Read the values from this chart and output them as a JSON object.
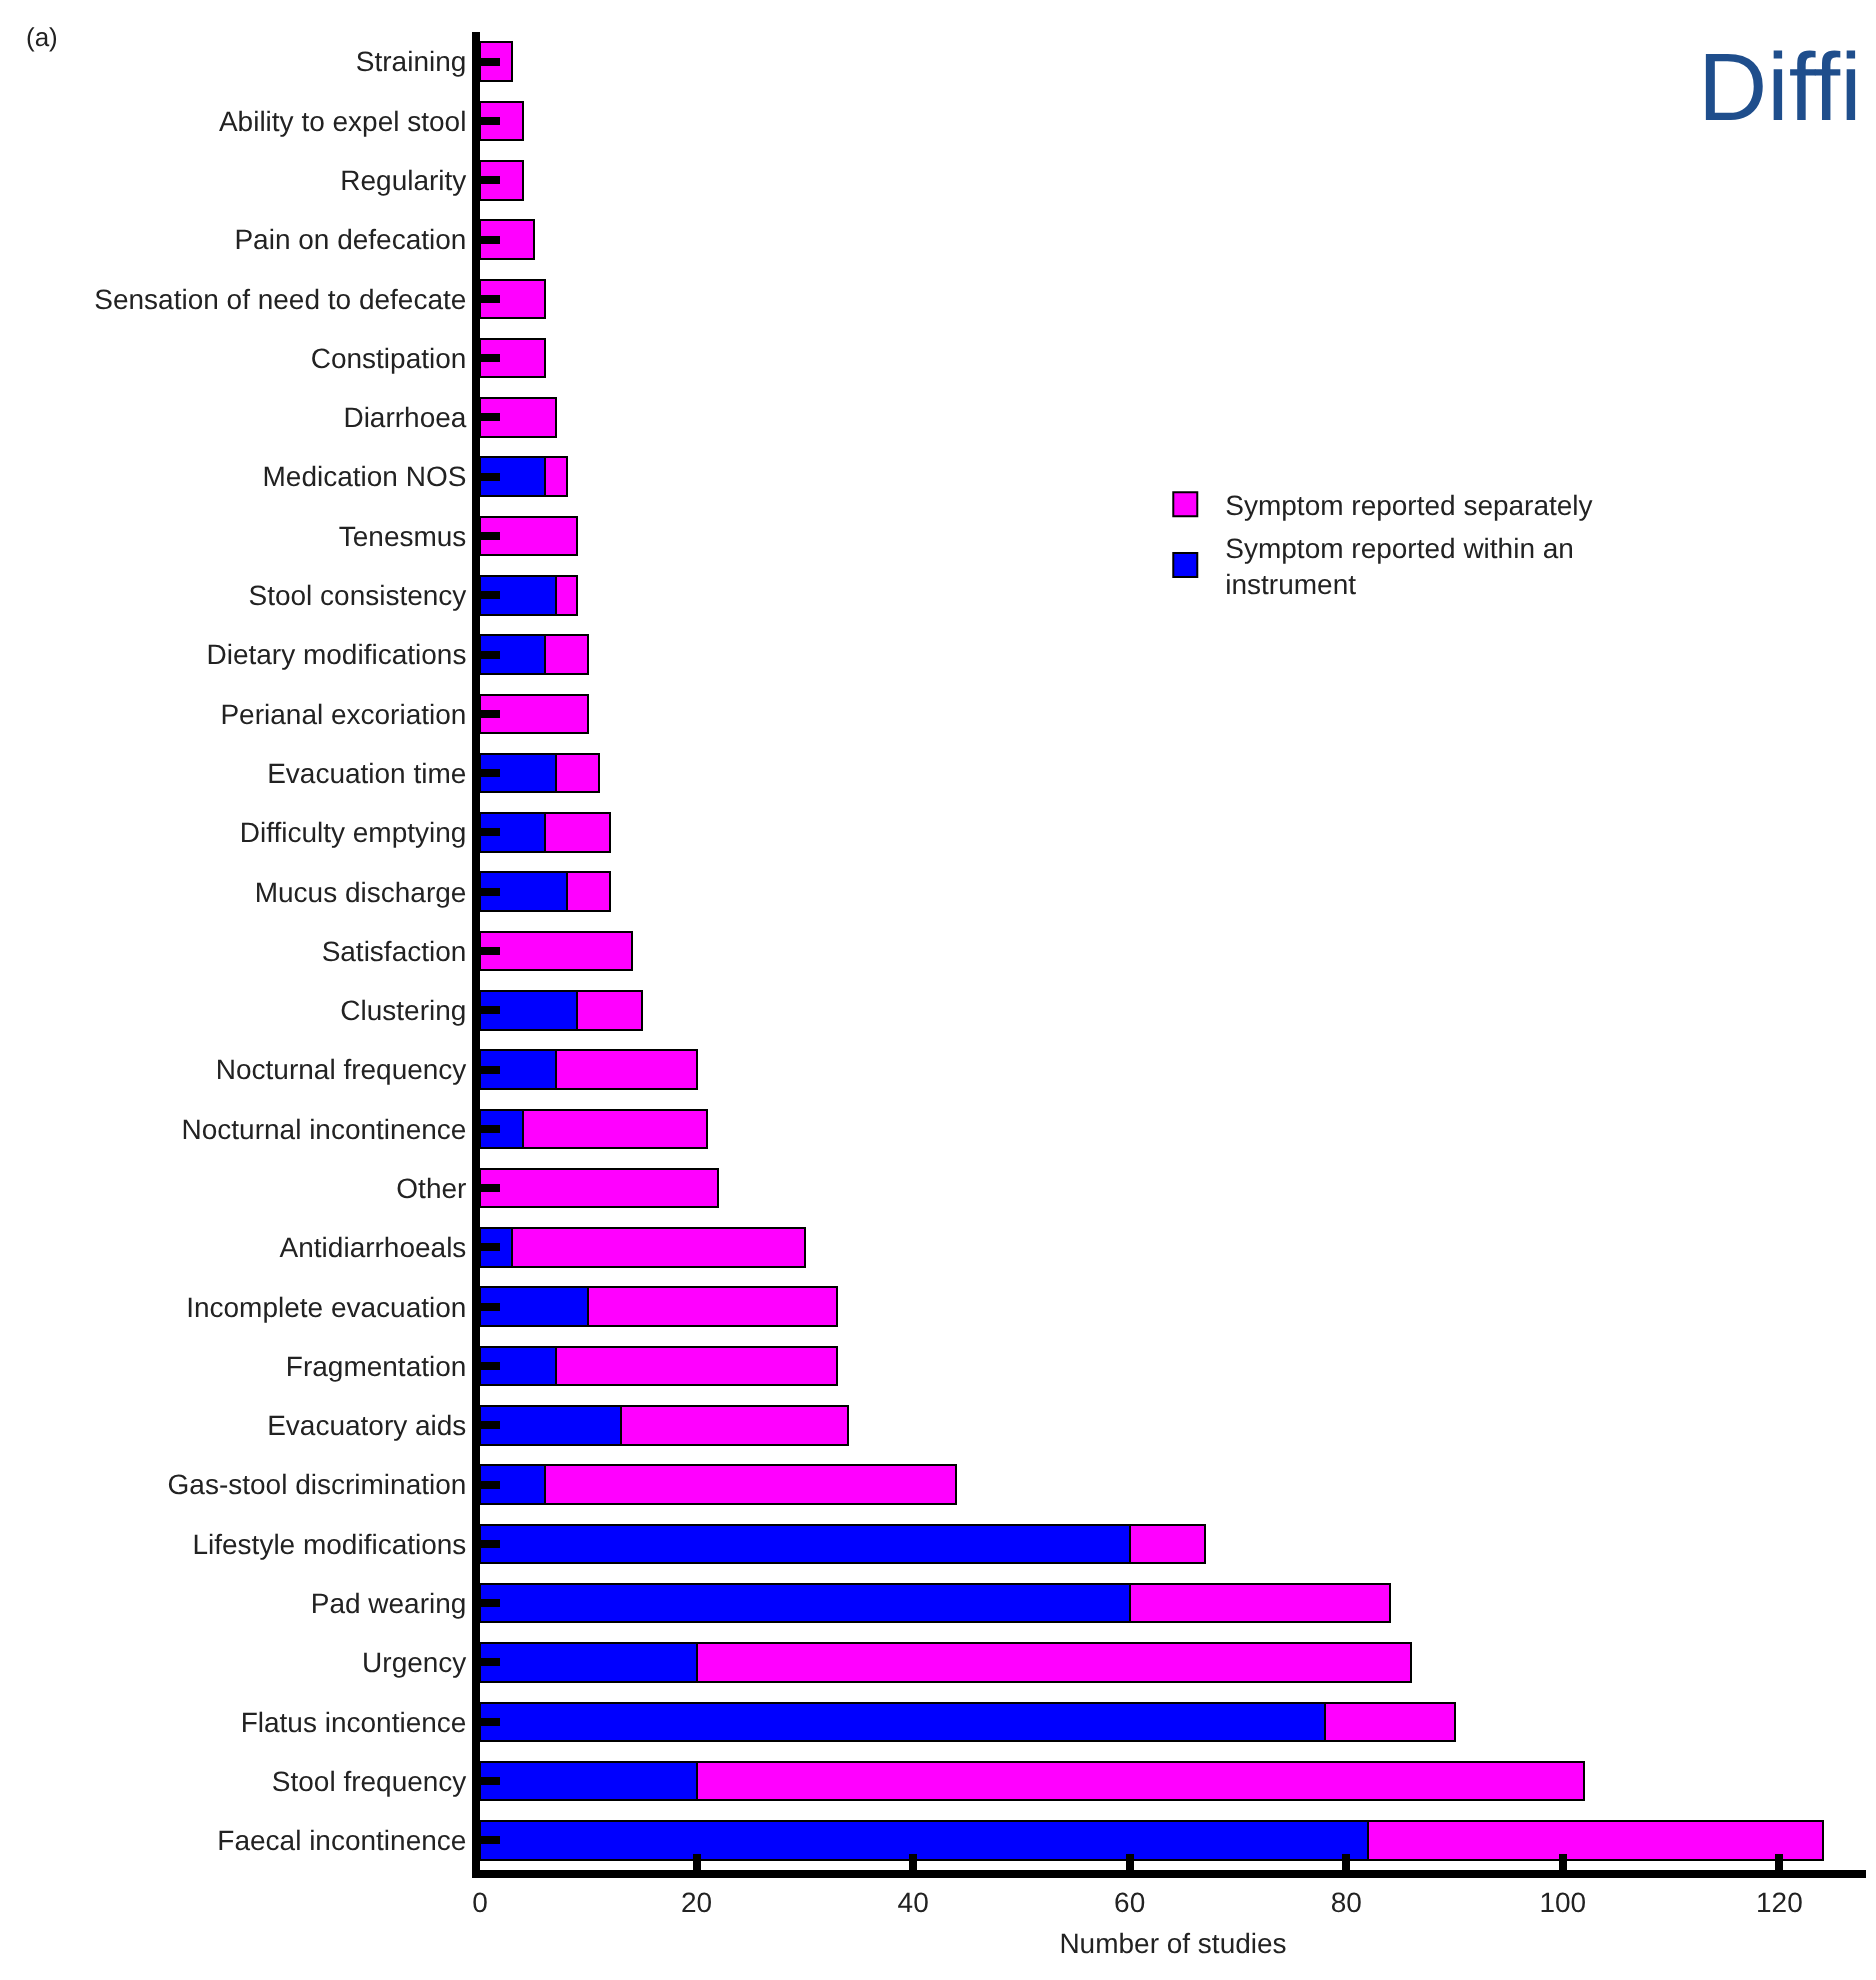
{
  "chart_data": {
    "type": "bar",
    "orientation": "horizontal",
    "stacked": true,
    "categories": [
      "Straining",
      "Ability to expel stool",
      "Regularity",
      "Pain on defecation",
      "Sensation of need to defecate",
      "Constipation",
      "Diarrhoea",
      "Medication NOS",
      "Tenesmus",
      "Stool consistency",
      "Dietary modifications",
      "Perianal excoriation",
      "Evacuation time",
      "Difficulty emptying",
      "Mucus discharge",
      "Satisfaction",
      "Clustering",
      "Nocturnal frequency",
      "Nocturnal incontinence",
      "Other",
      "Antidiarrhoeals",
      "Incomplete evacuation",
      "Fragmentation",
      "Evacuatory aids",
      "Gas-stool discrimination",
      "Lifestyle modifications",
      "Pad wearing",
      "Urgency",
      "Flatus incontience",
      "Stool frequency",
      "Faecal incontinence"
    ],
    "series": [
      {
        "name": "Symptom reported within an instrument",
        "color": "#0000ff",
        "values": [
          0,
          0,
          0,
          0,
          0,
          0,
          0,
          6,
          0,
          7,
          6,
          0,
          7,
          6,
          8,
          0,
          9,
          7,
          4,
          0,
          3,
          10,
          7,
          13,
          6,
          60,
          60,
          20,
          78,
          20,
          82
        ]
      },
      {
        "name": "Symptom reported separately",
        "color": "#ff00ff",
        "values": [
          3,
          4,
          4,
          5,
          6,
          6,
          7,
          2,
          9,
          2,
          4,
          10,
          4,
          6,
          4,
          14,
          6,
          13,
          17,
          22,
          27,
          23,
          26,
          21,
          38,
          7,
          24,
          66,
          12,
          82,
          42
        ]
      }
    ],
    "xlabel": "Number of studies",
    "xlim": [
      0,
      128
    ],
    "xticks": [
      0,
      20,
      40,
      60,
      80,
      100,
      120
    ],
    "grid": false,
    "legend": "right",
    "annotations": [
      "(a)",
      "Diffi"
    ]
  }
}
